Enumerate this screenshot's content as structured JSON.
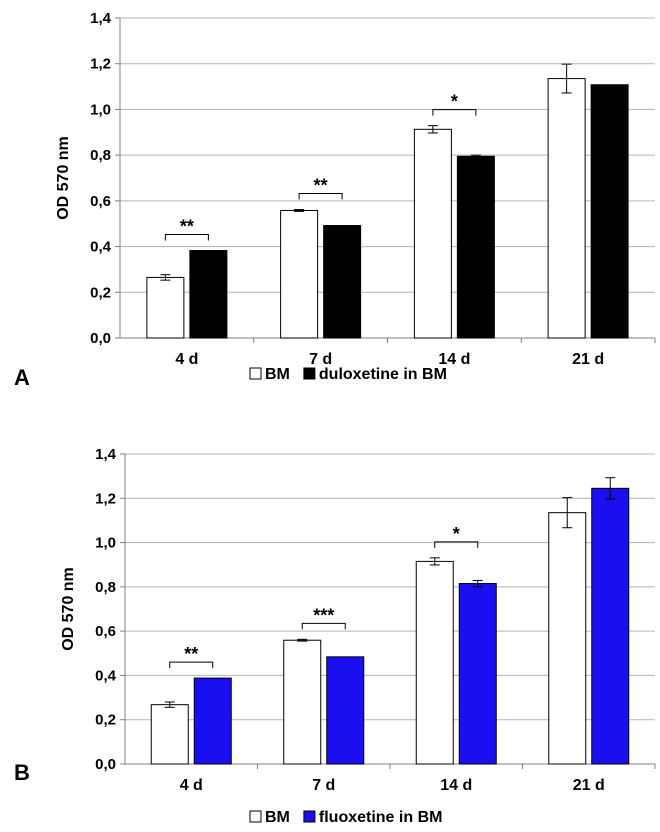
{
  "chart_data": [
    {
      "type": "bar",
      "panel": "A",
      "ylabel": "OD 570 nm",
      "ylim": [
        0,
        1.4
      ],
      "yticks": [
        "0,0",
        "0,2",
        "0,4",
        "0,6",
        "0,8",
        "1,0",
        "1,2",
        "1,4"
      ],
      "grid": true,
      "legend_position": "bottom",
      "categories": [
        "4 d",
        "7 d",
        "14 d",
        "21 d"
      ],
      "series": [
        {
          "name": "BM",
          "color": "#ffffff",
          "values": [
            0.265,
            0.558,
            0.913,
            1.135
          ],
          "errors": [
            0.012,
            0.004,
            0.016,
            0.063
          ]
        },
        {
          "name": "duloxetine in BM",
          "color": "#000000",
          "values": [
            0.383,
            0.492,
            0.795,
            1.108
          ],
          "errors": [
            0,
            0,
            0.005,
            0
          ]
        }
      ],
      "significance": [
        "**",
        "**",
        "*",
        ""
      ]
    },
    {
      "type": "bar",
      "panel": "B",
      "ylabel": "OD 570 nm",
      "ylim": [
        0,
        1.4
      ],
      "yticks": [
        "0,0",
        "0,2",
        "0,4",
        "0,6",
        "0,8",
        "1,0",
        "1,2",
        "1,4"
      ],
      "grid": true,
      "legend_position": "bottom",
      "categories": [
        "4 d",
        "7 d",
        "14 d",
        "21 d"
      ],
      "series": [
        {
          "name": "BM",
          "color": "#ffffff",
          "values": [
            0.268,
            0.559,
            0.915,
            1.135
          ],
          "errors": [
            0.012,
            0.004,
            0.016,
            0.068
          ]
        },
        {
          "name": "fluoxetine in BM",
          "color": "#1a0ff0",
          "values": [
            0.388,
            0.484,
            0.815,
            1.245
          ],
          "errors": [
            0,
            0,
            0.014,
            0.048
          ]
        }
      ],
      "significance": [
        "**",
        "***",
        "*",
        ""
      ]
    }
  ]
}
